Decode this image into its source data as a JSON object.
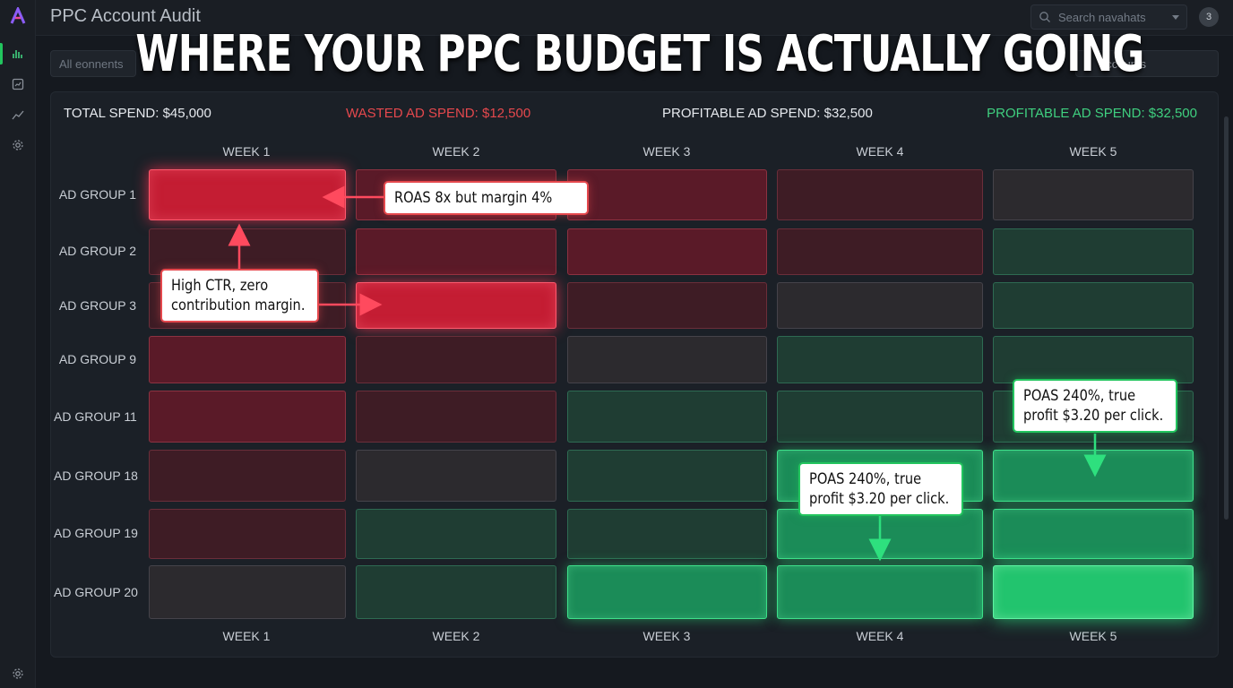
{
  "app": {
    "title": "PPC Account Audit"
  },
  "search": {
    "placeholder": "Search navahats"
  },
  "notifications": {
    "count": "3"
  },
  "filters": {
    "left_label": "All eonnents",
    "right_label": "accounts"
  },
  "headline": "WHERE YOUR PPC BUDGET IS ACTUALLY GOING",
  "stats": {
    "total": "TOTAL SPEND: $45,000",
    "wasted": "WASTED AD SPEND: $12,500",
    "profitable": "PROFITABLE AD SPEND: $32,500",
    "profitable_repeat": "PROFITABLE AD SPEND: $32,500"
  },
  "weeks": [
    "WEEK 1",
    "WEEK 2",
    "WEEK 3",
    "WEEK 4",
    "WEEK 5"
  ],
  "groups": [
    "AD GROUP 1",
    "AD GROUP 2",
    "AD GROUP 3",
    "AD GROUP 9",
    "AD GROUP 11",
    "AD GROUP 18",
    "AD GROUP 19",
    "AD GROUP 20"
  ],
  "heatmap_levels": [
    [
      "r3",
      "r2",
      "r2",
      "r1",
      "n"
    ],
    [
      "r1",
      "r2",
      "r2",
      "r1",
      "g1"
    ],
    [
      "r1",
      "r3",
      "r1",
      "n",
      "g1"
    ],
    [
      "r2",
      "r1",
      "n",
      "g1",
      "g1"
    ],
    [
      "r2",
      "r1",
      "g1",
      "g1",
      "g1"
    ],
    [
      "r1",
      "n",
      "g1",
      "g3",
      "g3"
    ],
    [
      "r1",
      "g1",
      "g1",
      "g3",
      "g3"
    ],
    [
      "n",
      "g1",
      "g3",
      "g3",
      "g4"
    ]
  ],
  "callouts": {
    "roas": "ROAS 8x but margin 4%",
    "ctr_line1": "High CTR, zero",
    "ctr_line2": "contribution margin.",
    "poas_a_line1": "POAS 240%, true",
    "poas_a_line2": "profit $3.20 per click.",
    "poas_b_line1": "POAS 240%, true",
    "poas_b_line2": "profit $3.20 per click."
  },
  "colors": {
    "accent_green": "#22c55e",
    "accent_red": "#e5484d"
  },
  "icons": [
    "logo-icon",
    "bar-chart-icon",
    "dashboard-icon",
    "line-chart-icon",
    "settings-icon",
    "search-icon"
  ]
}
